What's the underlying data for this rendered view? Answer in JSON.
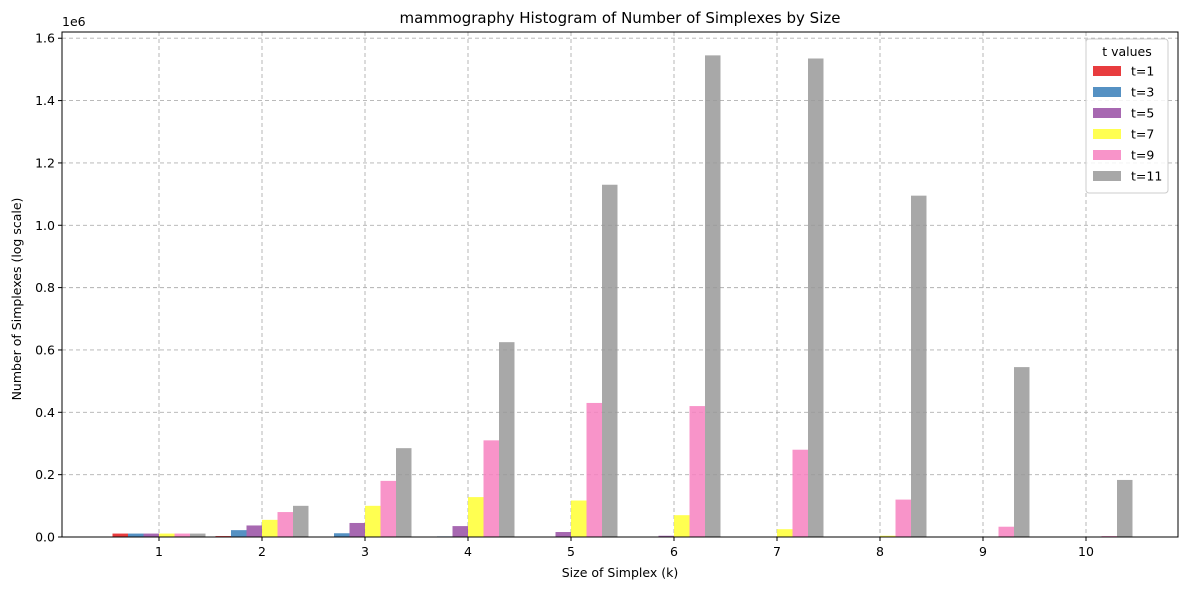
{
  "chart_data": {
    "type": "bar",
    "title": "mammography Histogram of Number of Simplexes by Size",
    "xlabel": "Size of Simplex (k)",
    "ylabel": "Number of Simplexes (log scale)",
    "y_offset_label": "1e6",
    "y_scale_factor": 1000000,
    "categories": [
      "1",
      "2",
      "3",
      "4",
      "5",
      "6",
      "7",
      "8",
      "9",
      "10"
    ],
    "ylim": [
      0,
      1620000
    ],
    "yticks": [
      0,
      200000,
      400000,
      600000,
      800000,
      1000000,
      1200000,
      1400000,
      1600000
    ],
    "ytick_labels": [
      "0.0",
      "0.2",
      "0.4",
      "0.6",
      "0.8",
      "1.0",
      "1.2",
      "1.4",
      "1.6"
    ],
    "grid": true,
    "legend": {
      "title": "t values",
      "position": "top-right"
    },
    "series": [
      {
        "name": "t=1",
        "color": "#e41a1c",
        "values": [
          11000,
          3000,
          0,
          0,
          0,
          0,
          0,
          0,
          0,
          0
        ]
      },
      {
        "name": "t=3",
        "color": "#377eb8",
        "values": [
          11000,
          22000,
          12000,
          2000,
          0,
          0,
          0,
          0,
          0,
          0
        ]
      },
      {
        "name": "t=5",
        "color": "#984ea3",
        "values": [
          11000,
          37000,
          45000,
          35000,
          16000,
          4000,
          500,
          0,
          0,
          0
        ]
      },
      {
        "name": "t=7",
        "color": "#ffff33",
        "values": [
          11000,
          55000,
          100000,
          128000,
          117000,
          70000,
          25000,
          4000,
          500,
          0
        ]
      },
      {
        "name": "t=9",
        "color": "#f781bf",
        "values": [
          11000,
          80000,
          180000,
          310000,
          430000,
          420000,
          280000,
          120000,
          33000,
          3000
        ]
      },
      {
        "name": "t=11",
        "color": "#999999",
        "values": [
          11000,
          100000,
          285000,
          625000,
          1130000,
          1545000,
          1535000,
          1095000,
          545000,
          183000
        ]
      }
    ]
  }
}
